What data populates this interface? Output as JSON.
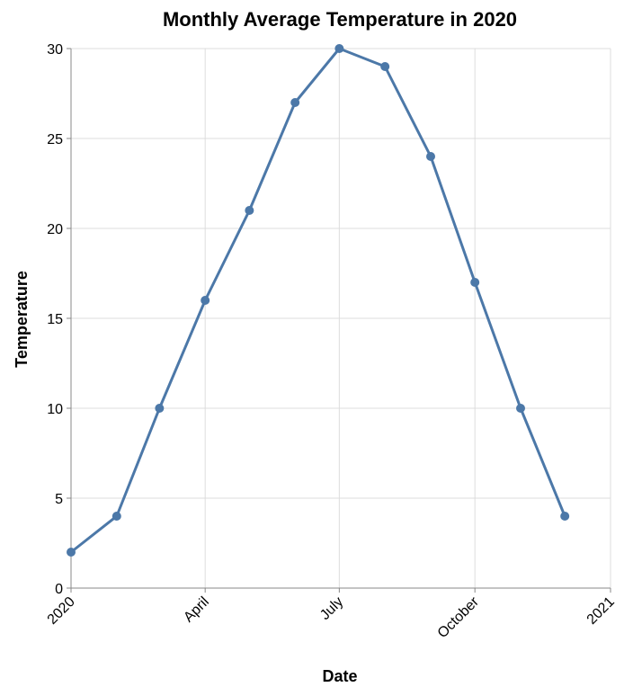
{
  "chart_data": {
    "type": "line",
    "title": "Monthly Average Temperature in 2020",
    "xlabel": "Date",
    "ylabel": "Temperature",
    "x": [
      "2020-01-01",
      "2020-02-01",
      "2020-03-01",
      "2020-04-01",
      "2020-05-01",
      "2020-06-01",
      "2020-07-01",
      "2020-08-01",
      "2020-09-01",
      "2020-10-01",
      "2020-11-01",
      "2020-12-01"
    ],
    "series": [
      {
        "values": [
          2,
          4,
          10,
          16,
          21,
          27,
          30,
          29,
          24,
          17,
          10,
          4
        ]
      }
    ],
    "ylim": [
      0,
      30
    ],
    "xlim": [
      "2020-01-01",
      "2021-01-01"
    ],
    "y_ticks": [
      0,
      5,
      10,
      15,
      20,
      25,
      30
    ],
    "x_ticks": [
      {
        "date": "2020-01-01",
        "label": "2020"
      },
      {
        "date": "2020-04-01",
        "label": "April"
      },
      {
        "date": "2020-07-01",
        "label": "July"
      },
      {
        "date": "2020-10-01",
        "label": "October"
      },
      {
        "date": "2021-01-01",
        "label": "2021"
      }
    ],
    "grid": true,
    "line_color": "#4c78a8",
    "point_color": "#4c78a8"
  }
}
